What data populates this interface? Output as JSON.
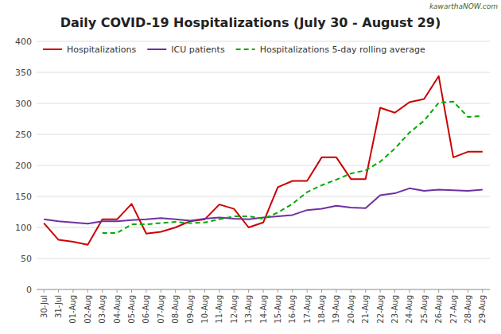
{
  "chart_data": {
    "type": "line",
    "title": "Daily COVID-19 Hospitalizations (July 30 - August 29)",
    "annotations": [
      "kawarthaNOW.com"
    ],
    "categories": [
      "30-Jul",
      "31-Jul",
      "01-Aug",
      "02-Aug",
      "03-Aug",
      "04-Aug",
      "05-Aug",
      "06-Aug",
      "07-Aug",
      "08-Aug",
      "09-Aug",
      "10-Aug",
      "11-Aug",
      "12-Aug",
      "13-Aug",
      "14-Aug",
      "15-Aug",
      "16-Aug",
      "17-Aug",
      "18-Aug",
      "19-Aug",
      "20-Aug",
      "21-Aug",
      "22-Aug",
      "23-Aug",
      "24-Aug",
      "25-Aug",
      "26-Aug",
      "27-Aug",
      "28-Aug",
      "29-Aug"
    ],
    "series": [
      {
        "name": "Hospitalizations",
        "color": "#cc0000",
        "line_style": "solid",
        "values": [
          107,
          80,
          77,
          72,
          113,
          113,
          138,
          90,
          93,
          100,
          110,
          113,
          137,
          130,
          100,
          108,
          165,
          175,
          175,
          213,
          213,
          178,
          178,
          293,
          285,
          302,
          307,
          344,
          213,
          222,
          222
        ]
      },
      {
        "name": "ICU patients",
        "color": "#7030a0",
        "line_style": "solid",
        "values": [
          113,
          110,
          108,
          106,
          110,
          110,
          112,
          113,
          115,
          113,
          111,
          114,
          116,
          114,
          113,
          116,
          118,
          120,
          128,
          130,
          135,
          132,
          131,
          152,
          155,
          163,
          159,
          161,
          160,
          159,
          161
        ]
      },
      {
        "name": "Hospitalizations 5-day rolling average",
        "color": "#00aa00",
        "line_style": "dashed",
        "values": [
          null,
          null,
          null,
          null,
          91,
          91,
          105,
          105,
          107,
          109,
          107,
          108,
          113,
          118,
          118,
          114,
          124,
          138,
          157,
          168,
          177,
          187,
          192,
          206,
          227,
          253,
          272,
          301,
          303,
          278,
          280
        ]
      }
    ],
    "ylim": [
      0,
      400
    ],
    "yticks": [
      0,
      50,
      100,
      150,
      200,
      250,
      300,
      350,
      400
    ],
    "grid": true,
    "legend": "upper left"
  }
}
